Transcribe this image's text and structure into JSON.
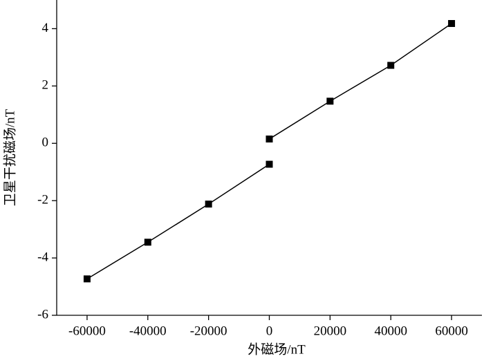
{
  "chart_data": {
    "type": "line",
    "xlabel": "外磁场/nT",
    "ylabel": "卫星干扰磁场/nT",
    "series": [
      {
        "color": "#000000",
        "x": [
          -60000,
          -40000,
          -20000,
          0
        ],
        "values": [
          -4.73,
          -3.45,
          -2.12,
          -0.73
        ]
      },
      {
        "color": "#000000",
        "x": [
          0,
          20000,
          40000,
          60000
        ],
        "values": [
          0.15,
          1.47,
          2.72,
          4.18
        ]
      }
    ],
    "xlim": [
      -70000,
      70000
    ],
    "xticks": [
      -60000,
      -40000,
      -20000,
      0,
      20000,
      40000,
      60000
    ],
    "ylim": [
      -6,
      5
    ],
    "yticks": [
      -6,
      -4,
      -2,
      0,
      2,
      4
    ],
    "grid": false
  }
}
